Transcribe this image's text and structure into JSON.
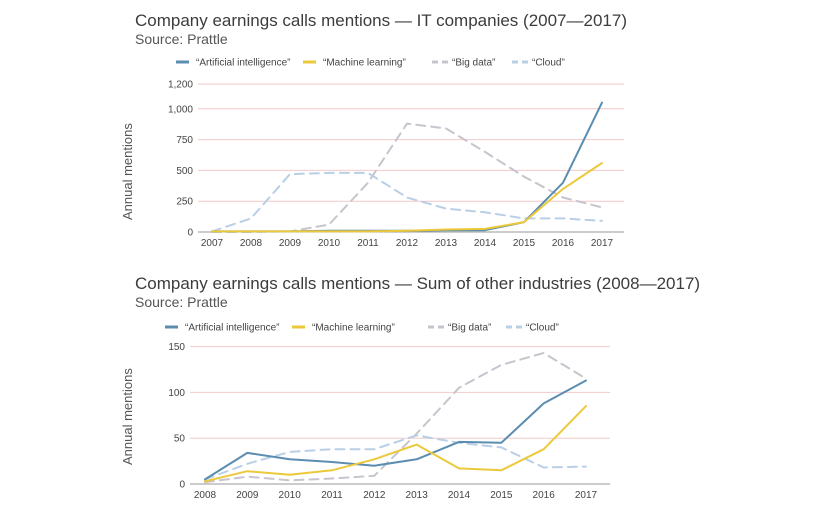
{
  "colors": {
    "ai": "#5b8db0",
    "ml": "#ecc93a",
    "bigdata": "#c8c4cd",
    "cloud": "#b9cfe6",
    "grid": "#f2c9c9",
    "axis": "#999999"
  },
  "chart_data": [
    {
      "type": "line",
      "title": "Company earnings calls mentions — IT companies (2007—2017)",
      "source": "Source: Prattle",
      "ylabel": "Annual mentions",
      "xlabel": "",
      "ylim": [
        0,
        1250
      ],
      "yticks": [
        0,
        250,
        500,
        750,
        "1,000",
        "1,200"
      ],
      "ytick_values": [
        0,
        250,
        500,
        750,
        1000,
        1200
      ],
      "categories": [
        "2007",
        "2008",
        "2009",
        "2010",
        "2011",
        "2012",
        "2013",
        "2014",
        "2015",
        "2016",
        "2017"
      ],
      "legend": [
        "“Artificial intelligence”",
        "“Machine learning”",
        "“Big data”",
        "“Cloud”"
      ],
      "series": [
        {
          "name": "“Artificial intelligence”",
          "key": "ai",
          "dashed": false,
          "values": [
            5,
            5,
            5,
            10,
            10,
            10,
            15,
            15,
            80,
            400,
            1050
          ]
        },
        {
          "name": "“Machine learning”",
          "key": "ml",
          "dashed": false,
          "values": [
            5,
            5,
            5,
            5,
            5,
            10,
            20,
            25,
            80,
            350,
            560
          ]
        },
        {
          "name": "“Big data”",
          "key": "bigdata",
          "dashed": true,
          "values": [
            0,
            0,
            5,
            60,
            400,
            880,
            840,
            650,
            450,
            280,
            200
          ]
        },
        {
          "name": "“Cloud”",
          "key": "cloud",
          "dashed": true,
          "values": [
            5,
            110,
            470,
            480,
            480,
            280,
            190,
            160,
            110,
            110,
            90
          ]
        }
      ]
    },
    {
      "type": "line",
      "title": "Company earnings calls mentions — Sum of other industries (2008—2017)",
      "source": "Source: Prattle",
      "ylabel": "Annual mentions",
      "xlabel": "",
      "ylim": [
        0,
        155
      ],
      "yticks": [
        0,
        50,
        100,
        150
      ],
      "ytick_values": [
        0,
        50,
        100,
        150
      ],
      "categories": [
        "2008",
        "2009",
        "2010",
        "2011",
        "2012",
        "2013",
        "2014",
        "2015",
        "2016",
        "2017"
      ],
      "legend": [
        "“Artificial intelligence”",
        "“Machine learning”",
        "“Big data”",
        "“Cloud”"
      ],
      "series": [
        {
          "name": "“Artificial intelligence”",
          "key": "ai",
          "dashed": false,
          "values": [
            5,
            34,
            27,
            24,
            20,
            27,
            46,
            45,
            88,
            113
          ]
        },
        {
          "name": "“Machine learning”",
          "key": "ml",
          "dashed": false,
          "values": [
            3,
            14,
            10,
            15,
            27,
            43,
            17,
            15,
            38,
            85
          ]
        },
        {
          "name": "“Big data”",
          "key": "bigdata",
          "dashed": true,
          "values": [
            2,
            8,
            4,
            6,
            9,
            55,
            105,
            130,
            143,
            115
          ]
        },
        {
          "name": "“Cloud”",
          "key": "cloud",
          "dashed": true,
          "values": [
            5,
            22,
            35,
            38,
            38,
            53,
            45,
            40,
            18,
            19
          ]
        }
      ]
    }
  ]
}
